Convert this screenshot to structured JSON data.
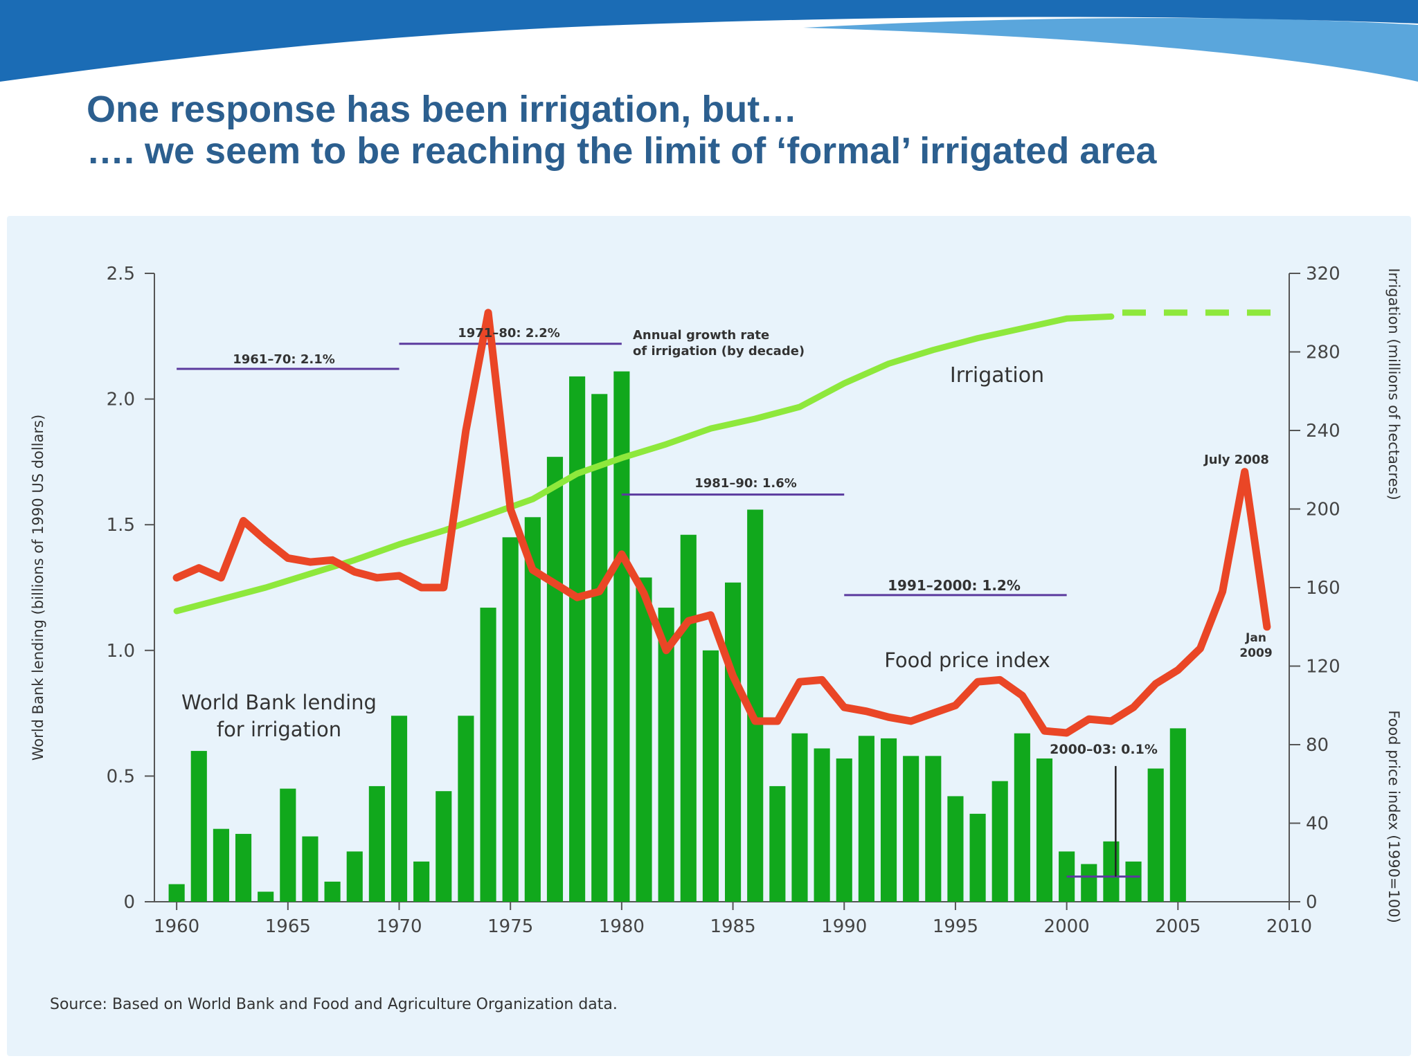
{
  "slide": {
    "title_line1": "One response has been irrigation, but…",
    "title_line2": "…. we seem to be reaching the limit of ‘formal’ irrigated area",
    "colors": {
      "title": "#2c5f8f",
      "banner_dark": "#1b6cb5",
      "banner_light": "#5aa6dc",
      "panel": "#e8f3fb"
    }
  },
  "chart_data": {
    "type": "bar+line",
    "xlim": [
      1959,
      2010
    ],
    "x_ticks": [
      1960,
      1965,
      1970,
      1975,
      1980,
      1985,
      1990,
      1995,
      2000,
      2005,
      2010
    ],
    "y_left": {
      "label": "World Bank lending (billions of 1990 US dollars)",
      "lim": [
        0,
        2.5
      ],
      "ticks": [
        0,
        0.5,
        1.0,
        1.5,
        2.0,
        2.5
      ],
      "tick_labels": [
        "0",
        "0.5",
        "1.0",
        "1.5",
        "2.0",
        "2.5"
      ]
    },
    "y_right": {
      "label_irrigation": "Irrigation (millions of hectacres)",
      "label_food": "Food price index (1990=100)",
      "lim": [
        0,
        320
      ],
      "ticks": [
        0,
        40,
        80,
        120,
        160,
        200,
        240,
        280,
        320
      ],
      "tick_labels": [
        "0",
        "40",
        "80",
        "120",
        "160",
        "200",
        "240",
        "280",
        "320"
      ]
    },
    "series": [
      {
        "name": "World Bank lending for irrigation",
        "kind": "bar",
        "axis": "left",
        "color": "#11a81c",
        "x": [
          1960,
          1961,
          1962,
          1963,
          1964,
          1965,
          1966,
          1967,
          1968,
          1969,
          1970,
          1971,
          1972,
          1973,
          1974,
          1975,
          1976,
          1977,
          1978,
          1979,
          1980,
          1981,
          1982,
          1983,
          1984,
          1985,
          1986,
          1987,
          1988,
          1989,
          1990,
          1991,
          1992,
          1993,
          1994,
          1995,
          1996,
          1997,
          1998,
          1999,
          2000,
          2001,
          2002,
          2003,
          2004,
          2005
        ],
        "values": [
          0.07,
          0.6,
          0.29,
          0.27,
          0.04,
          0.45,
          0.26,
          0.08,
          0.2,
          0.46,
          0.74,
          0.16,
          0.44,
          0.74,
          1.17,
          1.45,
          1.53,
          1.77,
          2.09,
          2.02,
          2.11,
          1.29,
          1.17,
          1.46,
          1.0,
          1.27,
          1.56,
          0.46,
          0.67,
          0.61,
          0.57,
          0.66,
          0.65,
          0.58,
          0.58,
          0.42,
          0.35,
          0.48,
          0.67,
          0.57,
          0.2,
          0.15,
          0.24,
          0.16,
          0.53,
          0.69
        ]
      },
      {
        "name": "Irrigation",
        "kind": "line",
        "axis": "right",
        "color": "#8ee83c",
        "x": [
          1960,
          1962,
          1964,
          1966,
          1968,
          1970,
          1972,
          1974,
          1976,
          1978,
          1980,
          1982,
          1984,
          1986,
          1988,
          1990,
          1992,
          1994,
          1996,
          1998,
          2000,
          2002
        ],
        "values": [
          148,
          154,
          160,
          167,
          174,
          182,
          189,
          197,
          205,
          218,
          226,
          233,
          241,
          246,
          252,
          264,
          274,
          281,
          287,
          292,
          297,
          298
        ],
        "projection": {
          "x": [
            2002.5,
            2009.5
          ],
          "values": [
            300,
            300
          ]
        }
      },
      {
        "name": "Food price index",
        "kind": "line",
        "axis": "right",
        "color": "#ea4626",
        "x": [
          1960,
          1961,
          1962,
          1963,
          1964,
          1965,
          1966,
          1967,
          1968,
          1969,
          1970,
          1971,
          1972,
          1973,
          1974,
          1975,
          1976,
          1977,
          1978,
          1979,
          1980,
          1981,
          1982,
          1983,
          1984,
          1985,
          1986,
          1987,
          1988,
          1989,
          1990,
          1991,
          1992,
          1993,
          1994,
          1995,
          1996,
          1997,
          1998,
          1999,
          2000,
          2001,
          2002,
          2003,
          2004,
          2005,
          2006,
          2007,
          2008,
          2009
        ],
        "values": [
          165,
          170,
          165,
          194,
          184,
          175,
          173,
          174,
          168,
          165,
          166,
          160,
          160,
          240,
          300,
          200,
          169,
          162,
          155,
          158,
          177,
          157,
          128,
          143,
          146,
          115,
          92,
          92,
          112,
          113,
          99,
          97,
          94,
          92,
          96,
          100,
          112,
          113,
          105,
          87,
          86,
          93,
          92,
          99,
          111,
          118,
          129,
          158,
          219,
          140
        ]
      }
    ],
    "annotations": {
      "growth_note": [
        "Annual growth rate",
        "of irrigation (by decade)"
      ],
      "decade_rates": [
        {
          "label": "1961–70: 2.1%",
          "x": [
            1960,
            1970
          ],
          "y": 2.12
        },
        {
          "label": "1971–80: 2.2%",
          "x": [
            1970,
            1980
          ],
          "y": 2.22
        },
        {
          "label": "1981–90: 1.6%",
          "x": [
            1980,
            1990
          ],
          "y": 1.62
        },
        {
          "label": "1991–2000: 1.2%",
          "x": [
            1990,
            2000
          ],
          "y": 1.22
        },
        {
          "label": "2000–03: 0.1%",
          "x": [
            2000,
            2003.3
          ],
          "y": 0.1
        }
      ],
      "irrigation_label": "Irrigation",
      "food_label": "Food price index",
      "lending_label": [
        "World Bank lending",
        "for irrigation"
      ],
      "peak_label": "July 2008",
      "jan_label": [
        "Jan",
        "2009"
      ],
      "line_color": "#5b3a9e"
    },
    "source": "Source: Based on World Bank and Food and Agriculture Organization data."
  }
}
